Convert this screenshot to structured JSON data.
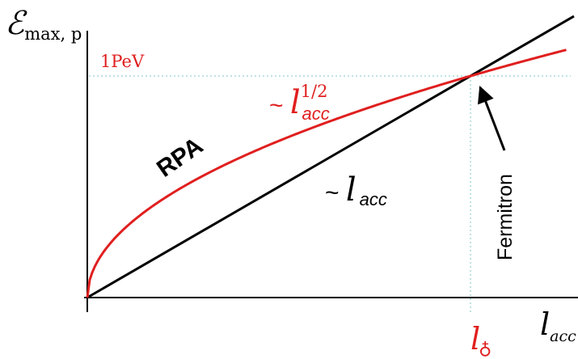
{
  "chart_data": {
    "type": "line",
    "title": "",
    "ylabel": {
      "symbol": "ℰ",
      "subscript": "max, p"
    },
    "xlabel": {
      "symbol": "l",
      "subscript": "acc"
    },
    "xlim": [
      0,
      1.27
    ],
    "ylim": [
      0,
      1.19
    ],
    "grid": false,
    "reference_lines": {
      "y": 1.0,
      "y_label": "1PeV",
      "x": 1.0,
      "x_tick_label": {
        "symbol": "l",
        "subscript": "♁"
      }
    },
    "series": [
      {
        "name": "RPA",
        "formula": "sqrt",
        "exponent": 0.5,
        "color": "#e01f1f",
        "x_max": 1.25,
        "label": {
          "prefix": "~ ",
          "symbol": "l",
          "superscript": "1/2",
          "subscript": "acc"
        }
      },
      {
        "name": "Fermitron",
        "formula": "linear",
        "exponent": 1.0,
        "color": "#000000",
        "x_max": 1.27,
        "label": {
          "prefix": "~ ",
          "symbol": "l",
          "subscript": "acc"
        }
      }
    ],
    "annotations": [
      {
        "text": "RPA",
        "target": "sqrt"
      },
      {
        "text": "Fermitron",
        "target": "intersection"
      }
    ]
  }
}
